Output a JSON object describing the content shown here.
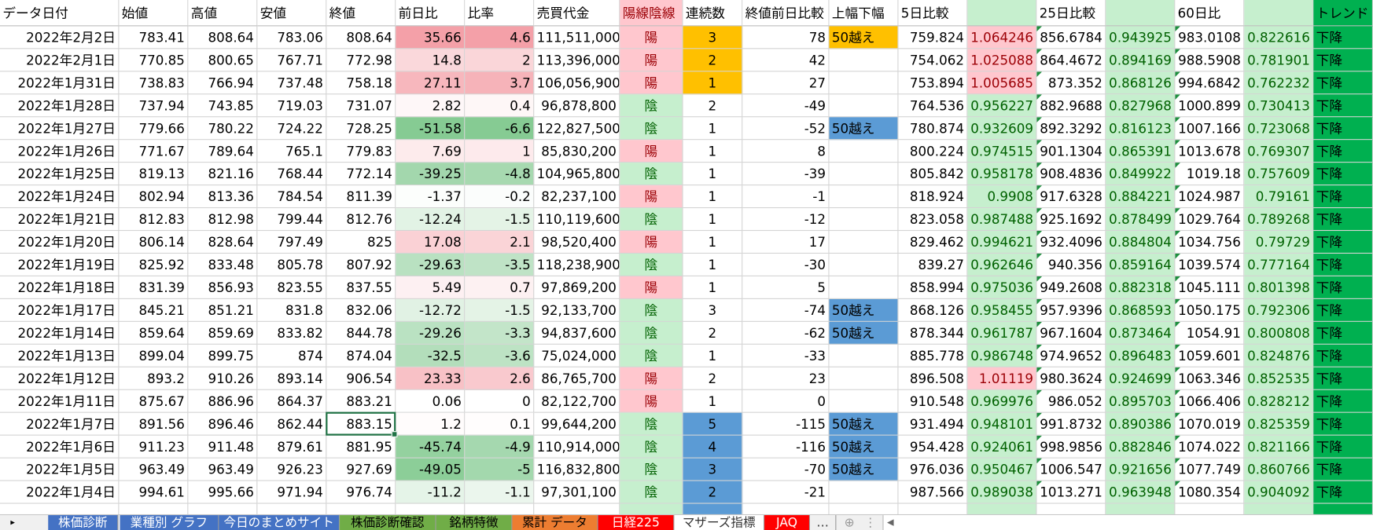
{
  "header": [
    "データ日付",
    "始値",
    "高値",
    "安値",
    "終値",
    "前日比",
    "比率",
    "売買代金",
    "陽線陰線",
    "連続数",
    "終値前日比較",
    "上幅下幅",
    "5日比較",
    null,
    "25日比較",
    null,
    "60日比",
    null,
    "トレンド"
  ],
  "rows": [
    [
      "2022年2月2日",
      "783.41",
      "808.64",
      "783.06",
      "808.64",
      "35.66",
      "4.6",
      "111,511,000",
      "陽",
      "3",
      "78",
      "50越え",
      "759.824",
      "1.064246",
      "856.6784",
      "0.943925",
      "983.0108",
      "0.822616",
      "下降"
    ],
    [
      "2022年2月1日",
      "770.85",
      "800.65",
      "767.71",
      "772.98",
      "14.8",
      "2",
      "113,396,000",
      "陽",
      "2",
      "42",
      null,
      "754.062",
      "1.025088",
      "864.4672",
      "0.894169",
      "988.5908",
      "0.781901",
      "下降"
    ],
    [
      "2022年1月31日",
      "738.83",
      "766.94",
      "737.48",
      "758.18",
      "27.11",
      "3.7",
      "106,056,900",
      "陽",
      "1",
      "27",
      null,
      "753.894",
      "1.005685",
      "873.352",
      "0.868126",
      "994.6842",
      "0.762232",
      "下降"
    ],
    [
      "2022年1月28日",
      "737.94",
      "743.85",
      "719.03",
      "731.07",
      "2.82",
      "0.4",
      "96,878,800",
      "陰",
      "2",
      "-49",
      null,
      "764.536",
      "0.956227",
      "882.9688",
      "0.827968",
      "1000.899",
      "0.730413",
      "下降"
    ],
    [
      "2022年1月27日",
      "779.66",
      "780.22",
      "724.22",
      "728.25",
      "-51.58",
      "-6.6",
      "122,827,500",
      "陰",
      "1",
      "-52",
      "50越え",
      "780.874",
      "0.932609",
      "892.3292",
      "0.816123",
      "1007.166",
      "0.723068",
      "下降"
    ],
    [
      "2022年1月26日",
      "771.67",
      "789.64",
      "765.1",
      "779.83",
      "7.69",
      "1",
      "85,830,200",
      "陽",
      "1",
      "8",
      null,
      "800.224",
      "0.974515",
      "901.1304",
      "0.865391",
      "1013.678",
      "0.769307",
      "下降"
    ],
    [
      "2022年1月25日",
      "819.13",
      "821.16",
      "768.44",
      "772.14",
      "-39.25",
      "-4.8",
      "104,965,800",
      "陰",
      "1",
      "-39",
      null,
      "805.842",
      "0.958178",
      "908.4836",
      "0.849922",
      "1019.18",
      "0.757609",
      "下降"
    ],
    [
      "2022年1月24日",
      "802.94",
      "813.36",
      "784.54",
      "811.39",
      "-1.37",
      "-0.2",
      "82,237,100",
      "陽",
      "1",
      "-1",
      null,
      "818.924",
      "0.9908",
      "917.6328",
      "0.884221",
      "1024.987",
      "0.79161",
      "下降"
    ],
    [
      "2022年1月21日",
      "812.83",
      "812.98",
      "799.44",
      "812.76",
      "-12.24",
      "-1.5",
      "110,119,600",
      "陰",
      "1",
      "-12",
      null,
      "823.058",
      "0.987488",
      "925.1692",
      "0.878499",
      "1029.764",
      "0.789268",
      "下降"
    ],
    [
      "2022年1月20日",
      "806.14",
      "828.64",
      "797.49",
      "825",
      "17.08",
      "2.1",
      "98,520,400",
      "陽",
      "1",
      "17",
      null,
      "829.462",
      "0.994621",
      "932.4096",
      "0.884804",
      "1034.756",
      "0.79729",
      "下降"
    ],
    [
      "2022年1月19日",
      "825.92",
      "833.48",
      "805.78",
      "807.92",
      "-29.63",
      "-3.5",
      "118,238,900",
      "陰",
      "1",
      "-30",
      null,
      "839.27",
      "0.962646",
      "940.356",
      "0.859164",
      "1039.574",
      "0.777164",
      "下降"
    ],
    [
      "2022年1月18日",
      "831.39",
      "856.93",
      "823.55",
      "837.55",
      "5.49",
      "0.7",
      "97,869,200",
      "陽",
      "1",
      "5",
      null,
      "858.994",
      "0.975036",
      "949.2608",
      "0.882318",
      "1045.111",
      "0.801398",
      "下降"
    ],
    [
      "2022年1月17日",
      "845.21",
      "851.21",
      "831.8",
      "832.06",
      "-12.72",
      "-1.5",
      "92,133,700",
      "陰",
      "3",
      "-74",
      "50越え",
      "868.126",
      "0.958455",
      "957.9396",
      "0.868593",
      "1050.175",
      "0.792306",
      "下降"
    ],
    [
      "2022年1月14日",
      "859.64",
      "859.69",
      "833.82",
      "844.78",
      "-29.26",
      "-3.3",
      "94,837,600",
      "陰",
      "2",
      "-62",
      "50越え",
      "878.344",
      "0.961787",
      "967.1604",
      "0.873464",
      "1054.91",
      "0.800808",
      "下降"
    ],
    [
      "2022年1月13日",
      "899.04",
      "899.75",
      "874",
      "874.04",
      "-32.5",
      "-3.6",
      "75,024,000",
      "陰",
      "1",
      "-33",
      null,
      "885.778",
      "0.986748",
      "974.9652",
      "0.896483",
      "1059.601",
      "0.824876",
      "下降"
    ],
    [
      "2022年1月12日",
      "893.2",
      "910.26",
      "893.14",
      "906.54",
      "23.33",
      "2.6",
      "86,765,700",
      "陽",
      "2",
      "23",
      null,
      "896.508",
      "1.01119",
      "980.3624",
      "0.924699",
      "1063.346",
      "0.852535",
      "下降"
    ],
    [
      "2022年1月11日",
      "875.67",
      "886.96",
      "864.37",
      "883.21",
      "0.06",
      "0",
      "82,122,700",
      "陽",
      "1",
      "0",
      null,
      "910.548",
      "0.969976",
      "986.052",
      "0.895703",
      "1066.406",
      "0.828212",
      "下降"
    ],
    [
      "2022年1月7日",
      "891.56",
      "896.46",
      "862.44",
      "883.15",
      "1.2",
      "0.1",
      "99,644,200",
      "陰",
      "5",
      "-115",
      "50越え",
      "931.494",
      "0.948101",
      "991.8732",
      "0.890386",
      "1070.019",
      "0.825359",
      "下降"
    ],
    [
      "2022年1月6日",
      "911.23",
      "911.48",
      "879.61",
      "881.95",
      "-45.74",
      "-4.9",
      "110,914,000",
      "陰",
      "4",
      "-116",
      "50越え",
      "954.428",
      "0.924061",
      "998.9856",
      "0.882846",
      "1074.022",
      "0.821166",
      "下降"
    ],
    [
      "2022年1月5日",
      "963.49",
      "963.49",
      "926.23",
      "927.69",
      "-49.05",
      "-5",
      "116,832,800",
      "陰",
      "3",
      "-70",
      "50越え",
      "976.036",
      "0.950467",
      "1006.547",
      "0.921656",
      "1077.749",
      "0.860766",
      "下降"
    ],
    [
      "2022年1月4日",
      "994.61",
      "995.66",
      "971.94",
      "976.74",
      "-11.2",
      "-1.1",
      "97,301,100",
      "陰",
      "2",
      "-21",
      null,
      "987.566",
      "0.989038",
      "1013.271",
      "0.963948",
      "1080.354",
      "0.904092",
      "下降"
    ]
  ],
  "tabs": [
    "株価診断",
    "業種別 グラフ",
    "今日のまとめサイト",
    "株価診断確認",
    "銘柄特徴",
    "累計 データ",
    "日経225",
    "マザーズ指標",
    "JAQ",
    "…"
  ]
}
